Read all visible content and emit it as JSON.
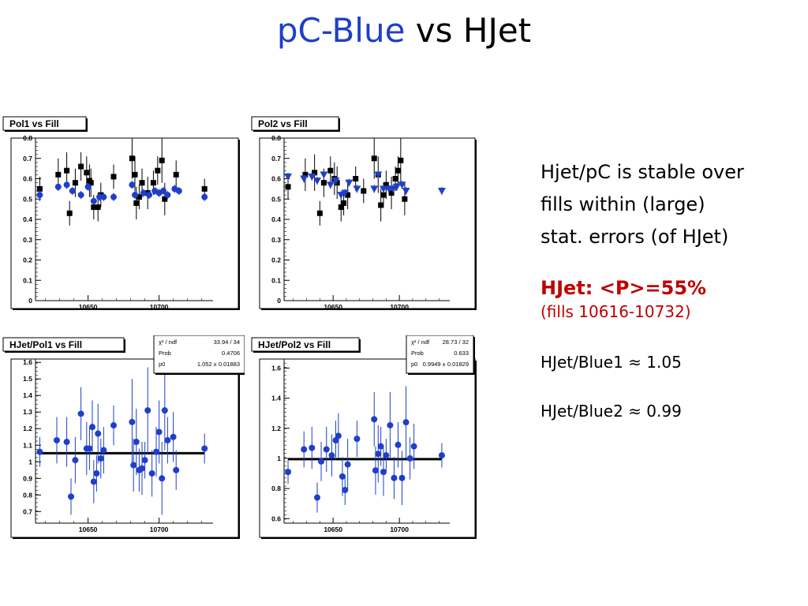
{
  "title": {
    "part1": "pC-Blue",
    "part2": "vs HJet"
  },
  "notes": {
    "line1": "Hjet/pC is stable over",
    "line2": "fills within (large)",
    "line3": "stat. errors (of HJet)",
    "mean": "HJet: <P>=55%",
    "fills": "(fills 10616-10732)",
    "ratio1": "HJet/Blue1 ≈ 1.05",
    "ratio2": "HJet/Blue2 ≈ 0.99"
  },
  "colors": {
    "blue": "#1f3fc8",
    "black": "#000000",
    "red": "#c00000"
  },
  "chart_data": [
    {
      "type": "scatter",
      "title": "Pol1 vs Fill",
      "xlim": [
        10613,
        10738
      ],
      "xticks": [
        10650,
        10700
      ],
      "ylim": [
        0,
        0.8
      ],
      "yticks": [
        "0",
        "0.1",
        "0.2",
        "0.3",
        "0.4",
        "0.5",
        "0.6",
        "0.7",
        "0.8"
      ],
      "series": [
        {
          "color": "#000000",
          "marker": "square",
          "x": [
            10616,
            10629,
            10635,
            10637,
            10641,
            10645,
            10649,
            10651,
            10652,
            10654,
            10657,
            10659,
            10668,
            10681,
            10683,
            10684,
            10686,
            10688,
            10692,
            10696,
            10699,
            10702,
            10704,
            10712,
            10732
          ],
          "y": [
            0.55,
            0.62,
            0.64,
            0.43,
            0.58,
            0.66,
            0.63,
            0.59,
            0.58,
            0.46,
            0.46,
            0.52,
            0.61,
            0.7,
            0.62,
            0.48,
            0.51,
            0.58,
            0.53,
            0.58,
            0.64,
            0.69,
            0.5,
            0.62,
            0.55
          ],
          "err": [
            0.06,
            0.08,
            0.09,
            0.06,
            0.07,
            0.07,
            0.08,
            0.08,
            0.07,
            0.06,
            0.07,
            0.06,
            0.06,
            0.1,
            0.09,
            0.08,
            0.06,
            0.07,
            0.08,
            0.06,
            0.07,
            0.11,
            0.08,
            0.07,
            0.05
          ]
        },
        {
          "color": "#1f3fc8",
          "marker": "circle",
          "x": [
            10616,
            10629,
            10635,
            10639,
            10645,
            10650,
            10654,
            10658,
            10661,
            10668,
            10681,
            10683,
            10689,
            10693,
            10697,
            10700,
            10703,
            10706,
            10711,
            10714,
            10732
          ],
          "y": [
            0.52,
            0.56,
            0.57,
            0.54,
            0.52,
            0.56,
            0.49,
            0.51,
            0.51,
            0.51,
            0.57,
            0.52,
            0.53,
            0.52,
            0.54,
            0.53,
            0.54,
            0.52,
            0.55,
            0.54,
            0.51
          ],
          "err": [
            0.03,
            0.02,
            0.02,
            0.02,
            0.02,
            0.02,
            0.02,
            0.02,
            0.02,
            0.02,
            0.02,
            0.02,
            0.02,
            0.02,
            0.02,
            0.02,
            0.02,
            0.02,
            0.02,
            0.02,
            0.02
          ]
        }
      ]
    },
    {
      "type": "scatter",
      "title": "Pol2 vs Fill",
      "xlim": [
        10613,
        10738
      ],
      "xticks": [
        10650,
        10700
      ],
      "ylim": [
        0,
        0.8
      ],
      "yticks": [
        "0",
        "0.1",
        "0.2",
        "0.3",
        "0.4",
        "0.5",
        "0.6",
        "0.7",
        "0.8"
      ],
      "series": [
        {
          "color": "#000000",
          "marker": "square",
          "x": [
            10616,
            10629,
            10636,
            10640,
            10643,
            10648,
            10651,
            10653,
            10656,
            10658,
            10661,
            10667,
            10673,
            10681,
            10684,
            10686,
            10688,
            10690,
            10694,
            10697,
            10699,
            10701,
            10704
          ],
          "y": [
            0.56,
            0.62,
            0.63,
            0.43,
            0.58,
            0.64,
            0.6,
            0.58,
            0.46,
            0.48,
            0.52,
            0.6,
            0.54,
            0.7,
            0.62,
            0.47,
            0.52,
            0.57,
            0.53,
            0.6,
            0.64,
            0.69,
            0.5
          ],
          "err": [
            0.06,
            0.08,
            0.09,
            0.06,
            0.07,
            0.07,
            0.08,
            0.08,
            0.07,
            0.06,
            0.07,
            0.06,
            0.06,
            0.1,
            0.09,
            0.08,
            0.06,
            0.07,
            0.08,
            0.06,
            0.07,
            0.11,
            0.08
          ]
        },
        {
          "color": "#1f3fc8",
          "marker": "triangle-down",
          "x": [
            10616,
            10628,
            10634,
            10638,
            10643,
            10648,
            10652,
            10656,
            10659,
            10662,
            10668,
            10681,
            10684,
            10688,
            10692,
            10695,
            10698,
            10702,
            10705,
            10732
          ],
          "y": [
            0.61,
            0.6,
            0.61,
            0.59,
            0.62,
            0.57,
            0.59,
            0.52,
            0.53,
            0.58,
            0.55,
            0.55,
            0.62,
            0.55,
            0.55,
            0.55,
            0.56,
            0.57,
            0.54,
            0.54
          ],
          "err": [
            0.02,
            0.02,
            0.02,
            0.02,
            0.02,
            0.02,
            0.02,
            0.02,
            0.02,
            0.02,
            0.02,
            0.02,
            0.02,
            0.02,
            0.02,
            0.02,
            0.02,
            0.02,
            0.02,
            0.02
          ]
        }
      ]
    },
    {
      "type": "scatter",
      "title": "HJet/Pol1 vs Fill",
      "xlim": [
        10613,
        10738
      ],
      "xticks": [
        10650,
        10700
      ],
      "ylim": [
        0.63,
        1.62
      ],
      "yticks": [
        "0.7",
        "0.8",
        "0.9",
        "1",
        "1.1",
        "1.2",
        "1.3",
        "1.4",
        "1.5",
        "1.6"
      ],
      "stats": {
        "rows": [
          [
            "χ² / ndf",
            "33.94 / 34"
          ],
          [
            "Prob",
            "0.4706"
          ],
          [
            "p0",
            "1.052 ± 0.01883"
          ]
        ]
      },
      "fit": 1.052,
      "series": [
        {
          "color": "#1f3fc8",
          "marker": "circle",
          "x": [
            10616,
            10628,
            10635,
            10638,
            10641,
            10645,
            10649,
            10651,
            10653,
            10654,
            10656,
            10657,
            10659,
            10661,
            10668,
            10681,
            10682,
            10684,
            10686,
            10688,
            10690,
            10692,
            10695,
            10698,
            10700,
            10702,
            10704,
            10706,
            10710,
            10712,
            10732
          ],
          "y": [
            1.06,
            1.13,
            1.12,
            0.79,
            1.01,
            1.29,
            1.08,
            1.08,
            1.21,
            0.88,
            0.93,
            1.17,
            1.02,
            1.07,
            1.22,
            1.24,
            0.98,
            1.12,
            0.95,
            0.96,
            1.01,
            1.31,
            0.93,
            1.06,
            1.18,
            0.9,
            1.31,
            1.13,
            1.15,
            0.95,
            1.08
          ],
          "err": [
            0.09,
            0.14,
            0.15,
            0.11,
            0.14,
            0.16,
            0.16,
            0.13,
            0.16,
            0.13,
            0.11,
            0.18,
            0.12,
            0.14,
            0.12,
            0.26,
            0.16,
            0.2,
            0.13,
            0.16,
            0.11,
            0.26,
            0.14,
            0.15,
            0.19,
            0.22,
            0.24,
            0.14,
            0.15,
            0.12,
            0.09
          ]
        }
      ]
    },
    {
      "type": "scatter",
      "title": "HJet/Pol2 vs Fill",
      "xlim": [
        10613,
        10738
      ],
      "xticks": [
        10650,
        10700
      ],
      "ylim": [
        0.57,
        1.66
      ],
      "yticks": [
        "0.6",
        "0.8",
        "1",
        "1.2",
        "1.4",
        "1.6"
      ],
      "stats": {
        "rows": [
          [
            "χ² / ndf",
            "28.73 / 32"
          ],
          [
            "Prob",
            "0.633"
          ],
          [
            "p0",
            "0.9949 ± 0.01829"
          ]
        ]
      },
      "fit": 0.995,
      "series": [
        {
          "color": "#1f3fc8",
          "marker": "circle",
          "x": [
            10616,
            10628,
            10634,
            10638,
            10641,
            10645,
            10649,
            10652,
            10654,
            10657,
            10659,
            10661,
            10668,
            10681,
            10682,
            10684,
            10686,
            10688,
            10690,
            10693,
            10696,
            10699,
            10702,
            10705,
            10708,
            10711,
            10732
          ],
          "y": [
            0.91,
            1.06,
            1.07,
            0.74,
            0.98,
            1.06,
            1.02,
            1.12,
            1.15,
            0.88,
            0.79,
            0.96,
            1.13,
            1.26,
            0.92,
            1.03,
            1.08,
            0.91,
            1.02,
            1.22,
            0.87,
            1.09,
            0.87,
            1.24,
            1.0,
            1.08,
            1.02
          ],
          "err": [
            0.08,
            0.12,
            0.14,
            0.1,
            0.13,
            0.15,
            0.14,
            0.13,
            0.15,
            0.13,
            0.1,
            0.17,
            0.12,
            0.18,
            0.16,
            0.19,
            0.13,
            0.16,
            0.11,
            0.22,
            0.14,
            0.15,
            0.18,
            0.24,
            0.14,
            0.15,
            0.08
          ]
        }
      ]
    }
  ]
}
